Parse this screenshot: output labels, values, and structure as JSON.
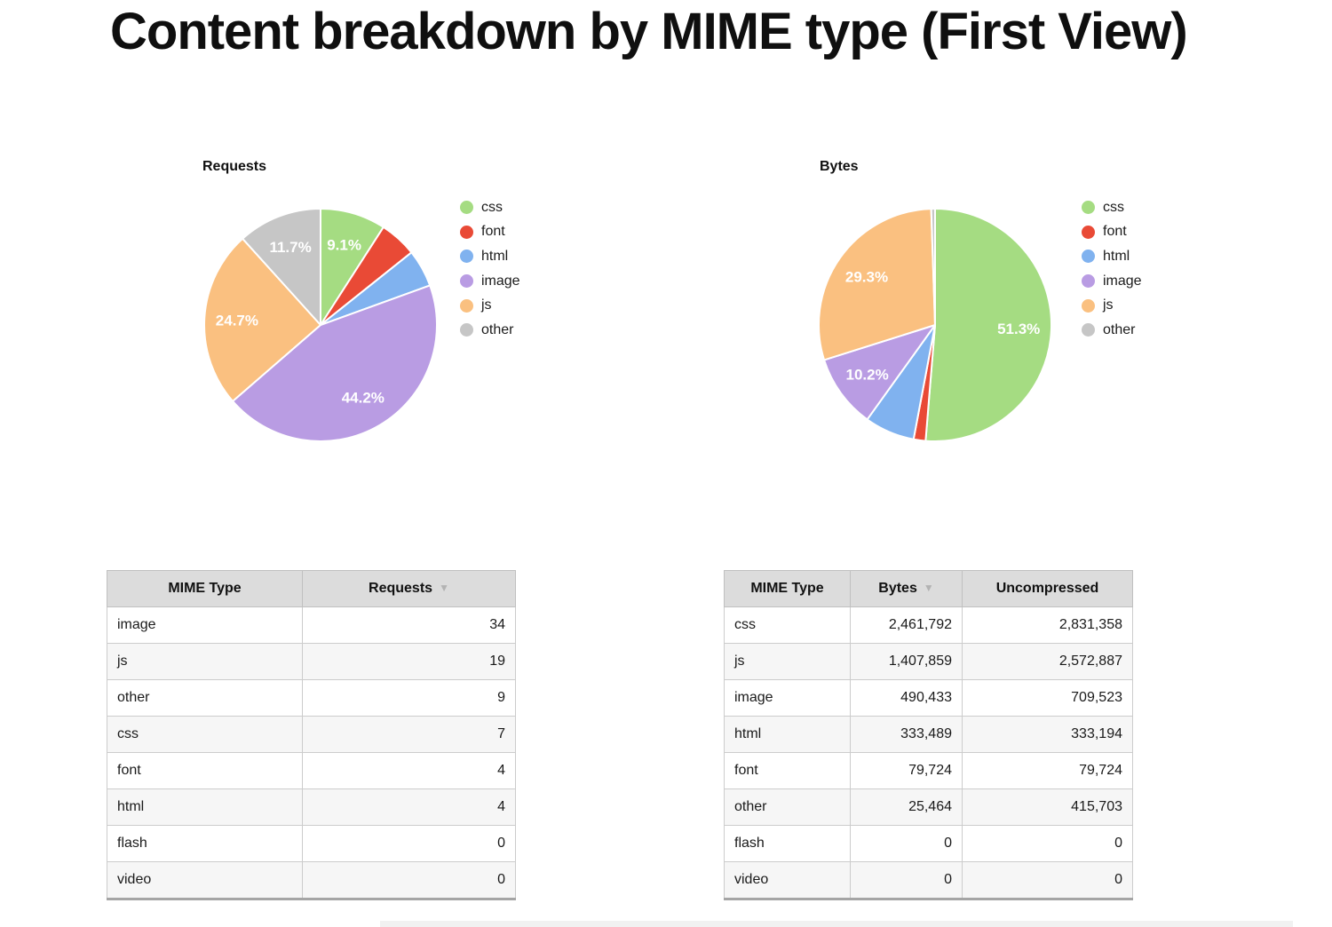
{
  "page_title": "Content breakdown by MIME type (First View)",
  "palette": {
    "css": "#a5dc82",
    "font": "#e94a36",
    "html": "#80b2ef",
    "image": "#b99ce3",
    "js": "#fac080",
    "other": "#c6c6c6"
  },
  "sort_icon": "▼",
  "chart_data": [
    {
      "type": "pie",
      "title": "Requests",
      "labels": [
        "css",
        "font",
        "html",
        "image",
        "js",
        "other"
      ],
      "values": [
        9.09,
        5.19,
        5.19,
        44.16,
        24.68,
        11.69
      ],
      "slice_labels": [
        "9.1%",
        "",
        "",
        "44.2%",
        "24.7%",
        "11.7%"
      ],
      "legend_position": "right",
      "start_angle_deg": 0,
      "direction": "clockwise"
    },
    {
      "type": "pie",
      "title": "Bytes",
      "labels": [
        "css",
        "font",
        "html",
        "image",
        "js",
        "other"
      ],
      "values": [
        51.3,
        1.66,
        6.95,
        10.22,
        29.34,
        0.53
      ],
      "slice_labels": [
        "51.3%",
        "",
        "",
        "10.2%",
        "29.3%",
        ""
      ],
      "legend_position": "right",
      "start_angle_deg": 0,
      "direction": "clockwise"
    }
  ],
  "tables": [
    {
      "headers": [
        {
          "label": "MIME Type",
          "sorted": false
        },
        {
          "label": "Requests",
          "sorted": true
        }
      ],
      "rows": [
        [
          "image",
          "34"
        ],
        [
          "js",
          "19"
        ],
        [
          "other",
          "9"
        ],
        [
          "css",
          "7"
        ],
        [
          "font",
          "4"
        ],
        [
          "html",
          "4"
        ],
        [
          "flash",
          "0"
        ],
        [
          "video",
          "0"
        ]
      ]
    },
    {
      "headers": [
        {
          "label": "MIME Type",
          "sorted": false
        },
        {
          "label": "Bytes",
          "sorted": true
        },
        {
          "label": "Uncompressed",
          "sorted": false
        }
      ],
      "rows": [
        [
          "css",
          "2,461,792",
          "2,831,358"
        ],
        [
          "js",
          "1,407,859",
          "2,572,887"
        ],
        [
          "image",
          "490,433",
          "709,523"
        ],
        [
          "html",
          "333,489",
          "333,194"
        ],
        [
          "font",
          "79,724",
          "79,724"
        ],
        [
          "other",
          "25,464",
          "415,703"
        ],
        [
          "flash",
          "0",
          "0"
        ],
        [
          "video",
          "0",
          "0"
        ]
      ]
    }
  ]
}
